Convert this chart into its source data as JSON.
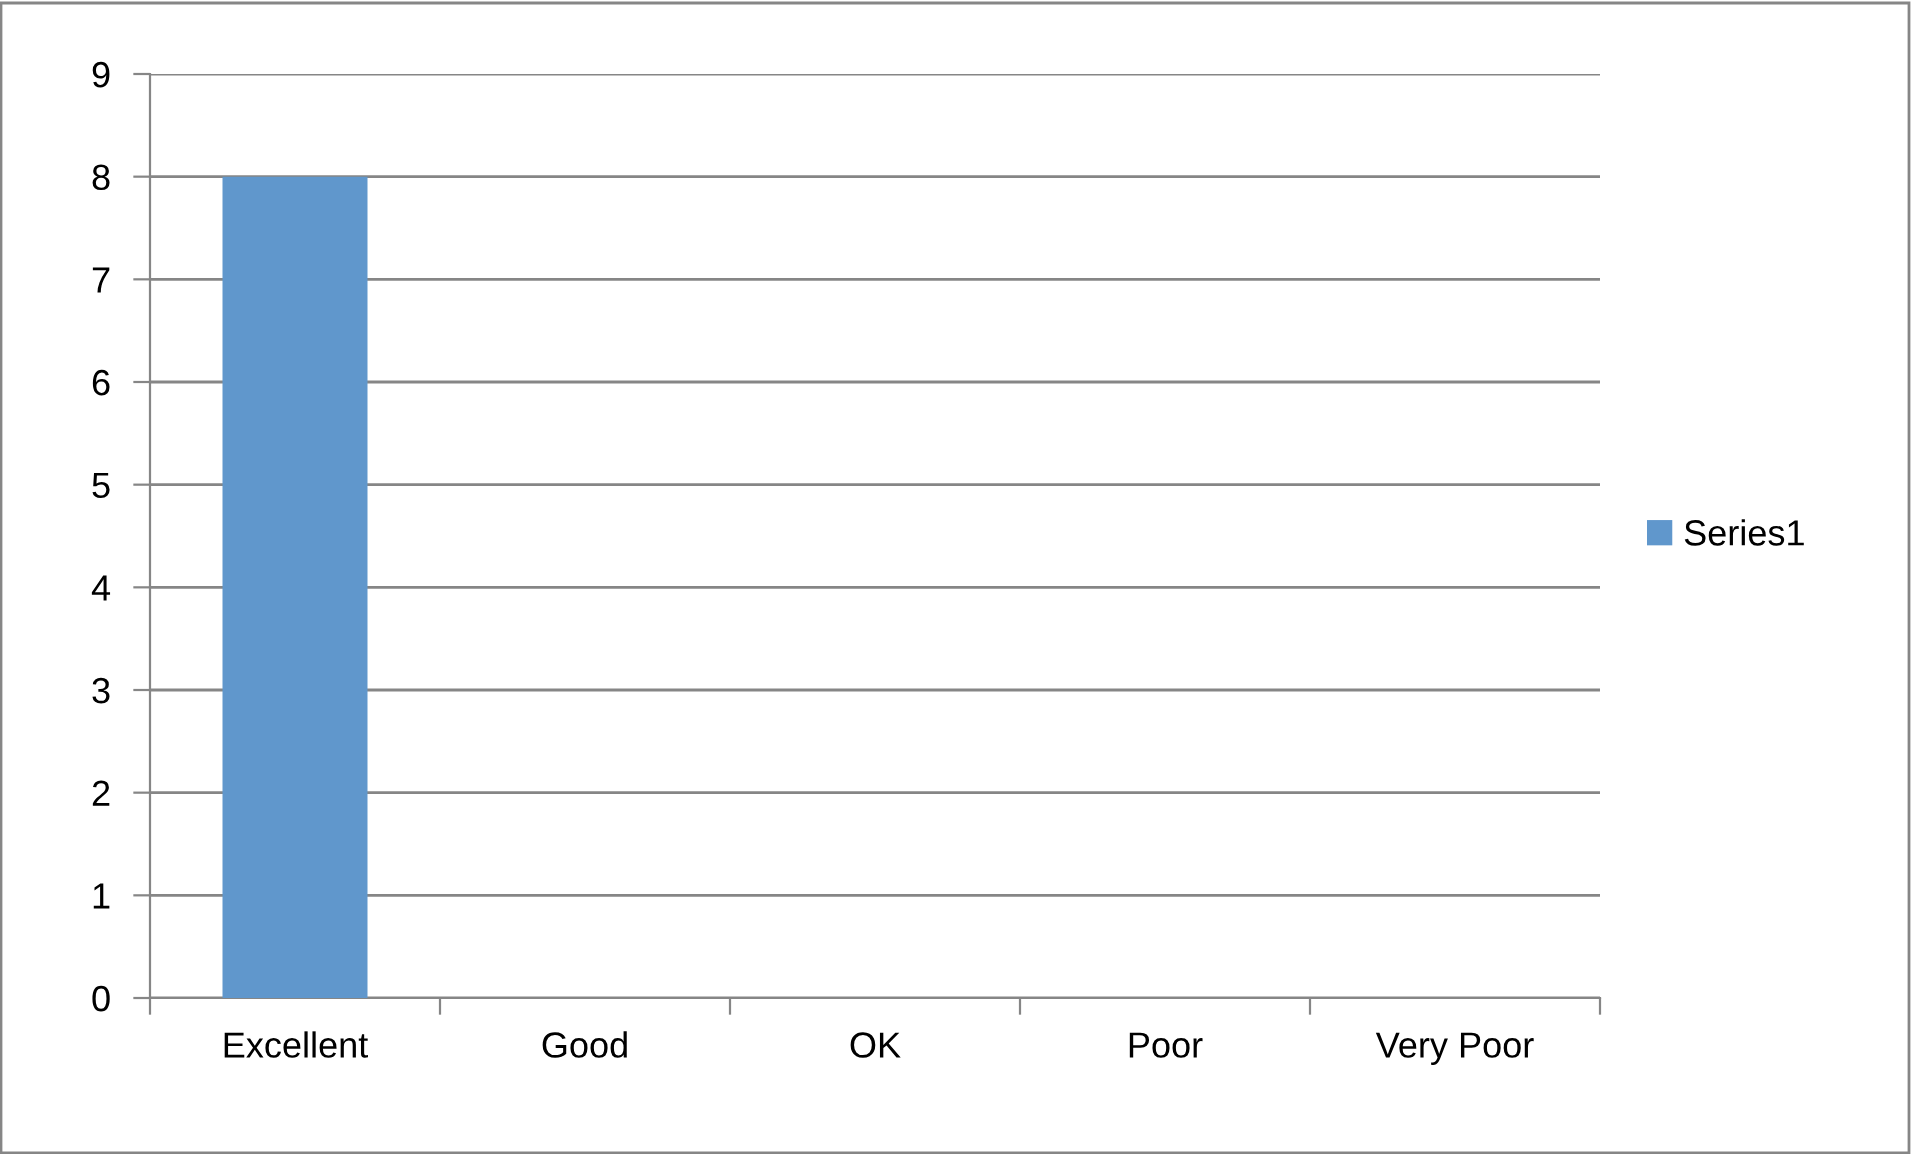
{
  "chart_data": {
    "type": "bar",
    "categories": [
      "Excellent",
      "Good",
      "OK",
      "Poor",
      "Very Poor"
    ],
    "series": [
      {
        "name": "Series1",
        "color": "#6097cc",
        "values": [
          8,
          0,
          0,
          0,
          0
        ]
      }
    ],
    "ylim": [
      0,
      9
    ],
    "yticks": [
      0,
      1,
      2,
      3,
      4,
      5,
      6,
      7,
      8,
      9
    ],
    "grid": "y",
    "legend": "right"
  }
}
